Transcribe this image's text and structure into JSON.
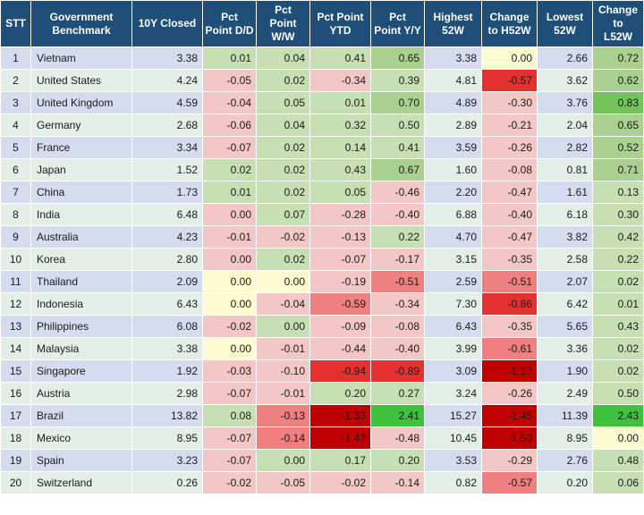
{
  "headers": [
    {
      "l1": "STT",
      "l2": ""
    },
    {
      "l1": "Government",
      "l2": "Benchmark"
    },
    {
      "l1": "10Y Closed",
      "l2": ""
    },
    {
      "l1": "Pct",
      "l2": "Point D/D"
    },
    {
      "l1": "Pct",
      "l2": "Point W/W"
    },
    {
      "l1": "Pct Point",
      "l2": "YTD"
    },
    {
      "l1": "Pct",
      "l2": "Point Y/Y"
    },
    {
      "l1": "Highest",
      "l2": "52W"
    },
    {
      "l1": "Change",
      "l2": "to H52W"
    },
    {
      "l1": "Lowest",
      "l2": "52W"
    },
    {
      "l1": "Change to",
      "l2": "L52W"
    }
  ],
  "colors": {
    "header_bg": "#1f4e79",
    "row_odd": "#d6dcf0",
    "row_even": "#e3efe6",
    "neutral": "#fdfbd0",
    "green_light": "#c6e0b4",
    "green_mid": "#a9d08e",
    "green_strong": "#70c45a",
    "green_vivid": "#3ec13c",
    "red_light": "#f4c7c7",
    "red_mid": "#f08080",
    "red_strong": "#e53030",
    "red_dark": "#c00000"
  },
  "rows": [
    {
      "stt": "1",
      "name": "Vietnam",
      "cells": [
        {
          "v": "3.38"
        },
        {
          "v": "0.01",
          "c": "green_light"
        },
        {
          "v": "0.04",
          "c": "green_light"
        },
        {
          "v": "0.41",
          "c": "green_light"
        },
        {
          "v": "0.65",
          "c": "green_mid"
        },
        {
          "v": "3.38"
        },
        {
          "v": "0.00",
          "c": "neutral"
        },
        {
          "v": "2.66"
        },
        {
          "v": "0.72",
          "c": "green_mid"
        }
      ]
    },
    {
      "stt": "2",
      "name": "United States",
      "cells": [
        {
          "v": "4.24"
        },
        {
          "v": "-0.05",
          "c": "red_light"
        },
        {
          "v": "0.02",
          "c": "green_light"
        },
        {
          "v": "-0.34",
          "c": "red_light"
        },
        {
          "v": "0.39",
          "c": "green_light"
        },
        {
          "v": "4.81"
        },
        {
          "v": "-0.57",
          "c": "red_strong"
        },
        {
          "v": "3.62"
        },
        {
          "v": "0.62",
          "c": "green_mid"
        }
      ]
    },
    {
      "stt": "3",
      "name": "United Kingdom",
      "cells": [
        {
          "v": "4.59"
        },
        {
          "v": "-0.04",
          "c": "red_light"
        },
        {
          "v": "0.05",
          "c": "green_light"
        },
        {
          "v": "0.01",
          "c": "green_light"
        },
        {
          "v": "0.70",
          "c": "green_mid"
        },
        {
          "v": "4.89"
        },
        {
          "v": "-0.30",
          "c": "red_light"
        },
        {
          "v": "3.76"
        },
        {
          "v": "0.83",
          "c": "green_strong"
        }
      ]
    },
    {
      "stt": "4",
      "name": "Germany",
      "cells": [
        {
          "v": "2.68"
        },
        {
          "v": "-0.06",
          "c": "red_light"
        },
        {
          "v": "0.04",
          "c": "green_light"
        },
        {
          "v": "0.32",
          "c": "green_light"
        },
        {
          "v": "0.50",
          "c": "green_light"
        },
        {
          "v": "2.89"
        },
        {
          "v": "-0.21",
          "c": "red_light"
        },
        {
          "v": "2.04"
        },
        {
          "v": "0.65",
          "c": "green_mid"
        }
      ]
    },
    {
      "stt": "5",
      "name": "France",
      "cells": [
        {
          "v": "3.34"
        },
        {
          "v": "-0.07",
          "c": "red_light"
        },
        {
          "v": "0.02",
          "c": "green_light"
        },
        {
          "v": "0.14",
          "c": "green_light"
        },
        {
          "v": "0.41",
          "c": "green_light"
        },
        {
          "v": "3.59"
        },
        {
          "v": "-0.26",
          "c": "red_light"
        },
        {
          "v": "2.82"
        },
        {
          "v": "0.52",
          "c": "green_mid"
        }
      ]
    },
    {
      "stt": "6",
      "name": "Japan",
      "cells": [
        {
          "v": "1.52"
        },
        {
          "v": "0.02",
          "c": "green_light"
        },
        {
          "v": "0.02",
          "c": "green_light"
        },
        {
          "v": "0.43",
          "c": "green_light"
        },
        {
          "v": "0.67",
          "c": "green_mid"
        },
        {
          "v": "1.60"
        },
        {
          "v": "-0.08",
          "c": "red_light"
        },
        {
          "v": "0.81"
        },
        {
          "v": "0.71",
          "c": "green_mid"
        }
      ]
    },
    {
      "stt": "7",
      "name": "China",
      "cells": [
        {
          "v": "1.73"
        },
        {
          "v": "0.01",
          "c": "green_light"
        },
        {
          "v": "0.02",
          "c": "green_light"
        },
        {
          "v": "0.05",
          "c": "green_light"
        },
        {
          "v": "-0.46",
          "c": "red_light"
        },
        {
          "v": "2.20"
        },
        {
          "v": "-0.47",
          "c": "red_light"
        },
        {
          "v": "1.61"
        },
        {
          "v": "0.13",
          "c": "green_light"
        }
      ]
    },
    {
      "stt": "8",
      "name": "India",
      "cells": [
        {
          "v": "6.48"
        },
        {
          "v": "0.00",
          "c": "red_light"
        },
        {
          "v": "0.07",
          "c": "green_light"
        },
        {
          "v": "-0.28",
          "c": "red_light"
        },
        {
          "v": "-0.40",
          "c": "red_light"
        },
        {
          "v": "6.88"
        },
        {
          "v": "-0.40",
          "c": "red_light"
        },
        {
          "v": "6.18"
        },
        {
          "v": "0.30",
          "c": "green_light"
        }
      ]
    },
    {
      "stt": "9",
      "name": "Australia",
      "cells": [
        {
          "v": "4.23"
        },
        {
          "v": "-0.01",
          "c": "red_light"
        },
        {
          "v": "-0.02",
          "c": "red_light"
        },
        {
          "v": "-0.13",
          "c": "red_light"
        },
        {
          "v": "0.22",
          "c": "green_light"
        },
        {
          "v": "4.70"
        },
        {
          "v": "-0.47",
          "c": "red_light"
        },
        {
          "v": "3.82"
        },
        {
          "v": "0.42",
          "c": "green_light"
        }
      ]
    },
    {
      "stt": "10",
      "name": "Korea",
      "cells": [
        {
          "v": "2.80"
        },
        {
          "v": "0.00",
          "c": "red_light"
        },
        {
          "v": "0.02",
          "c": "green_light"
        },
        {
          "v": "-0.07",
          "c": "red_light"
        },
        {
          "v": "-0.17",
          "c": "red_light"
        },
        {
          "v": "3.15"
        },
        {
          "v": "-0.35",
          "c": "red_light"
        },
        {
          "v": "2.58"
        },
        {
          "v": "0.22",
          "c": "green_light"
        }
      ]
    },
    {
      "stt": "11",
      "name": "Thailand",
      "cells": [
        {
          "v": "2.09"
        },
        {
          "v": "0.00",
          "c": "neutral"
        },
        {
          "v": "0.00",
          "c": "neutral"
        },
        {
          "v": "-0.19",
          "c": "red_light"
        },
        {
          "v": "-0.51",
          "c": "red_mid"
        },
        {
          "v": "2.59"
        },
        {
          "v": "-0.51",
          "c": "red_mid"
        },
        {
          "v": "2.07"
        },
        {
          "v": "0.02",
          "c": "green_light"
        }
      ]
    },
    {
      "stt": "12",
      "name": "Indonesia",
      "cells": [
        {
          "v": "6.43"
        },
        {
          "v": "0.00",
          "c": "neutral"
        },
        {
          "v": "-0.04",
          "c": "red_light"
        },
        {
          "v": "-0.59",
          "c": "red_mid"
        },
        {
          "v": "-0.34",
          "c": "red_light"
        },
        {
          "v": "7.30"
        },
        {
          "v": "-0.86",
          "c": "red_strong"
        },
        {
          "v": "6.42"
        },
        {
          "v": "0.01",
          "c": "green_light"
        }
      ]
    },
    {
      "stt": "13",
      "name": "Philippines",
      "cells": [
        {
          "v": "6.08"
        },
        {
          "v": "-0.02",
          "c": "red_light"
        },
        {
          "v": "0.00",
          "c": "green_light"
        },
        {
          "v": "-0.09",
          "c": "red_light"
        },
        {
          "v": "-0.08",
          "c": "red_light"
        },
        {
          "v": "6.43"
        },
        {
          "v": "-0.35",
          "c": "red_light"
        },
        {
          "v": "5.65"
        },
        {
          "v": "0.43",
          "c": "green_light"
        }
      ]
    },
    {
      "stt": "14",
      "name": "Malaysia",
      "cells": [
        {
          "v": "3.38"
        },
        {
          "v": "0.00",
          "c": "neutral"
        },
        {
          "v": "-0.01",
          "c": "red_light"
        },
        {
          "v": "-0.44",
          "c": "red_light"
        },
        {
          "v": "-0.40",
          "c": "red_light"
        },
        {
          "v": "3.99"
        },
        {
          "v": "-0.61",
          "c": "red_mid"
        },
        {
          "v": "3.36"
        },
        {
          "v": "0.02",
          "c": "green_light"
        }
      ]
    },
    {
      "stt": "15",
      "name": "Singapore",
      "cells": [
        {
          "v": "1.92"
        },
        {
          "v": "-0.03",
          "c": "red_light"
        },
        {
          "v": "-0.10",
          "c": "red_light"
        },
        {
          "v": "-0.94",
          "c": "red_strong"
        },
        {
          "v": "-0.89",
          "c": "red_strong"
        },
        {
          "v": "3.09"
        },
        {
          "v": "-1.17",
          "c": "red_dark"
        },
        {
          "v": "1.90"
        },
        {
          "v": "0.02",
          "c": "green_light"
        }
      ]
    },
    {
      "stt": "16",
      "name": "Austria",
      "cells": [
        {
          "v": "2.98"
        },
        {
          "v": "-0.07",
          "c": "red_light"
        },
        {
          "v": "-0.01",
          "c": "red_light"
        },
        {
          "v": "0.20",
          "c": "green_light"
        },
        {
          "v": "0.27",
          "c": "green_light"
        },
        {
          "v": "3.24"
        },
        {
          "v": "-0.26",
          "c": "red_light"
        },
        {
          "v": "2.49"
        },
        {
          "v": "0.50",
          "c": "green_light"
        }
      ]
    },
    {
      "stt": "17",
      "name": "Brazil",
      "cells": [
        {
          "v": "13.82"
        },
        {
          "v": "0.08",
          "c": "green_light"
        },
        {
          "v": "-0.13",
          "c": "red_mid"
        },
        {
          "v": "-1.33",
          "c": "red_dark"
        },
        {
          "v": "2.41",
          "c": "green_vivid"
        },
        {
          "v": "15.27"
        },
        {
          "v": "-1.45",
          "c": "red_dark"
        },
        {
          "v": "11.39"
        },
        {
          "v": "2.43",
          "c": "green_vivid"
        }
      ]
    },
    {
      "stt": "18",
      "name": "Mexico",
      "cells": [
        {
          "v": "8.95"
        },
        {
          "v": "-0.07",
          "c": "red_light"
        },
        {
          "v": "-0.14",
          "c": "red_mid"
        },
        {
          "v": "-1.47",
          "c": "red_dark"
        },
        {
          "v": "-0.48",
          "c": "red_light"
        },
        {
          "v": "10.45"
        },
        {
          "v": "-1.50",
          "c": "red_dark"
        },
        {
          "v": "8.95"
        },
        {
          "v": "0.00",
          "c": "neutral"
        }
      ]
    },
    {
      "stt": "19",
      "name": "Spain",
      "cells": [
        {
          "v": "3.23"
        },
        {
          "v": "-0.07",
          "c": "red_light"
        },
        {
          "v": "0.00",
          "c": "green_light"
        },
        {
          "v": "0.17",
          "c": "green_light"
        },
        {
          "v": "0.20",
          "c": "green_light"
        },
        {
          "v": "3.53"
        },
        {
          "v": "-0.29",
          "c": "red_light"
        },
        {
          "v": "2.76"
        },
        {
          "v": "0.48",
          "c": "green_light"
        }
      ]
    },
    {
      "stt": "20",
      "name": "Switzerland",
      "cells": [
        {
          "v": "0.26"
        },
        {
          "v": "-0.02",
          "c": "red_light"
        },
        {
          "v": "-0.05",
          "c": "red_light"
        },
        {
          "v": "-0.02",
          "c": "red_light"
        },
        {
          "v": "-0.14",
          "c": "red_light"
        },
        {
          "v": "0.82"
        },
        {
          "v": "-0.57",
          "c": "red_mid"
        },
        {
          "v": "0.20"
        },
        {
          "v": "0.06",
          "c": "green_light"
        }
      ]
    }
  ]
}
